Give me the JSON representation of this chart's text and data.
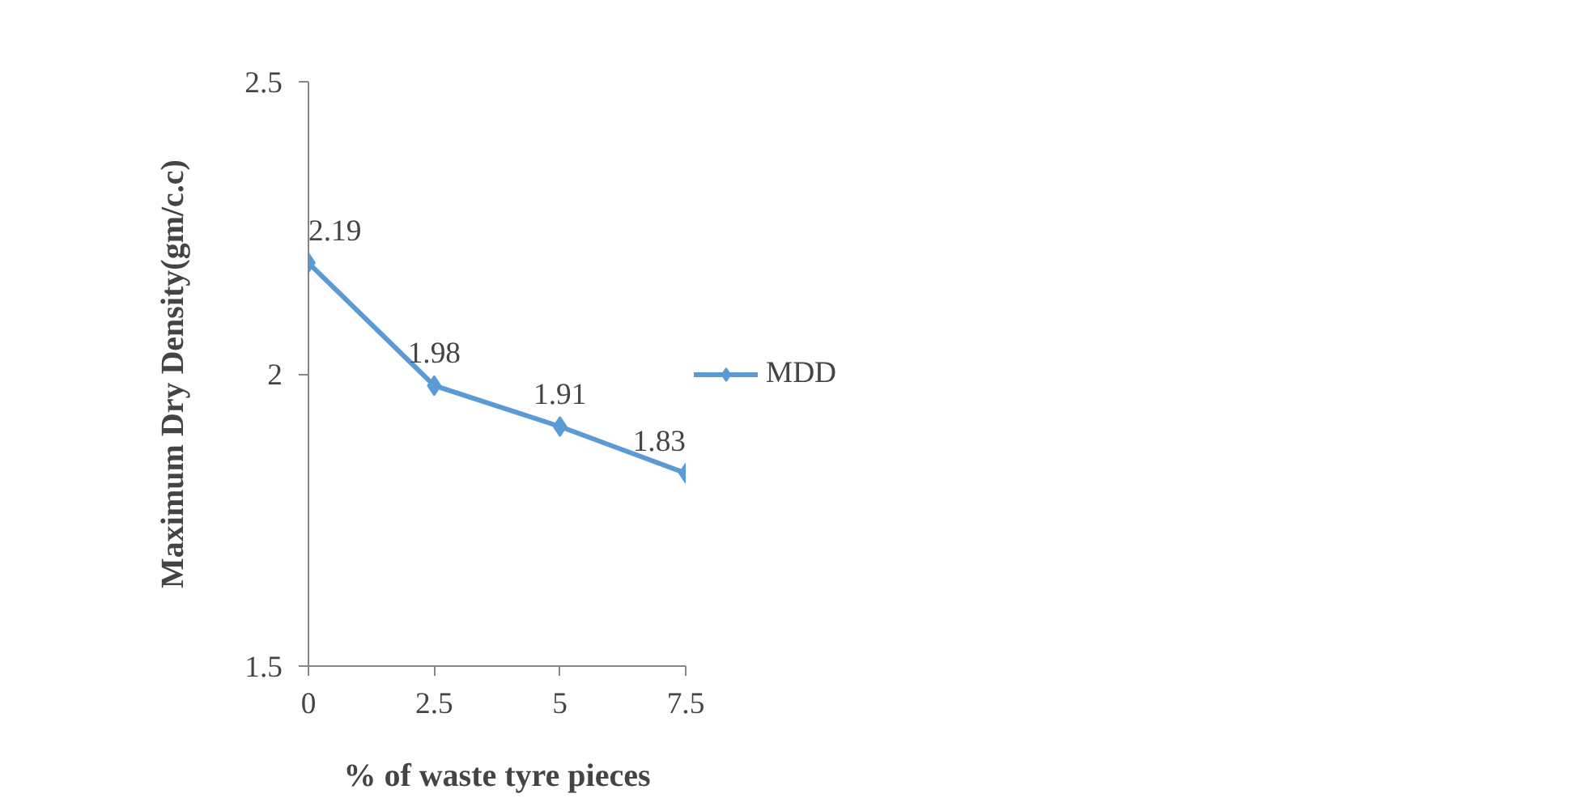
{
  "chart_data": {
    "type": "line",
    "xlabel": "% of waste tyre pieces",
    "ylabel": "Maximum Dry Density(gm/c.c)",
    "x": [
      0,
      2.5,
      5,
      7.5
    ],
    "series": [
      {
        "name": "MDD",
        "color": "#5b9bd5",
        "values": [
          2.19,
          1.98,
          1.91,
          1.83
        ]
      }
    ],
    "xlim": [
      0,
      7.5
    ],
    "xticks": [
      0,
      2.5,
      5,
      7.5
    ],
    "ylim": [
      1.5,
      2.5
    ],
    "yticks": [
      1.5,
      2,
      2.5
    ],
    "grid": false,
    "legend": "right",
    "marker": "diamond",
    "line_style": "solid",
    "data_labels": true
  }
}
